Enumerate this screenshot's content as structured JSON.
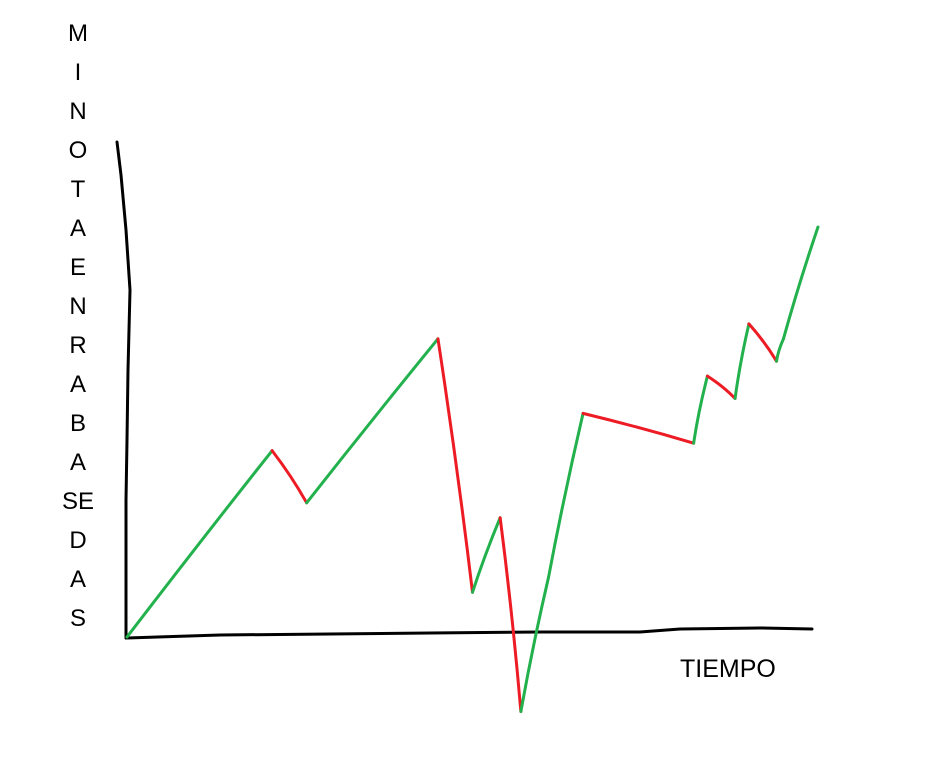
{
  "chart_data": {
    "type": "line",
    "title": "",
    "xlabel": "TIEMPO",
    "ylabel": "MINOTAENRABASEDAS",
    "ylabel_lines": [
      "M",
      "I",
      "N",
      "O",
      "T",
      "A",
      "E",
      "N",
      "R",
      "A",
      "B",
      "A",
      "SE",
      "D",
      "A",
      "S"
    ],
    "segment_colors": {
      "up": "#22b14c",
      "down": "#ed1c24"
    },
    "xlim": [
      0,
      100
    ],
    "ylim": [
      -10,
      70
    ],
    "axes_color": "#000000",
    "x": [
      0,
      21,
      26,
      45,
      50,
      54,
      57,
      61,
      66,
      82,
      84,
      88,
      90,
      94,
      95,
      100
    ],
    "y": [
      0,
      25,
      18,
      40,
      6,
      16,
      -10,
      8,
      30,
      26,
      35,
      32,
      42,
      37,
      40,
      55
    ]
  }
}
